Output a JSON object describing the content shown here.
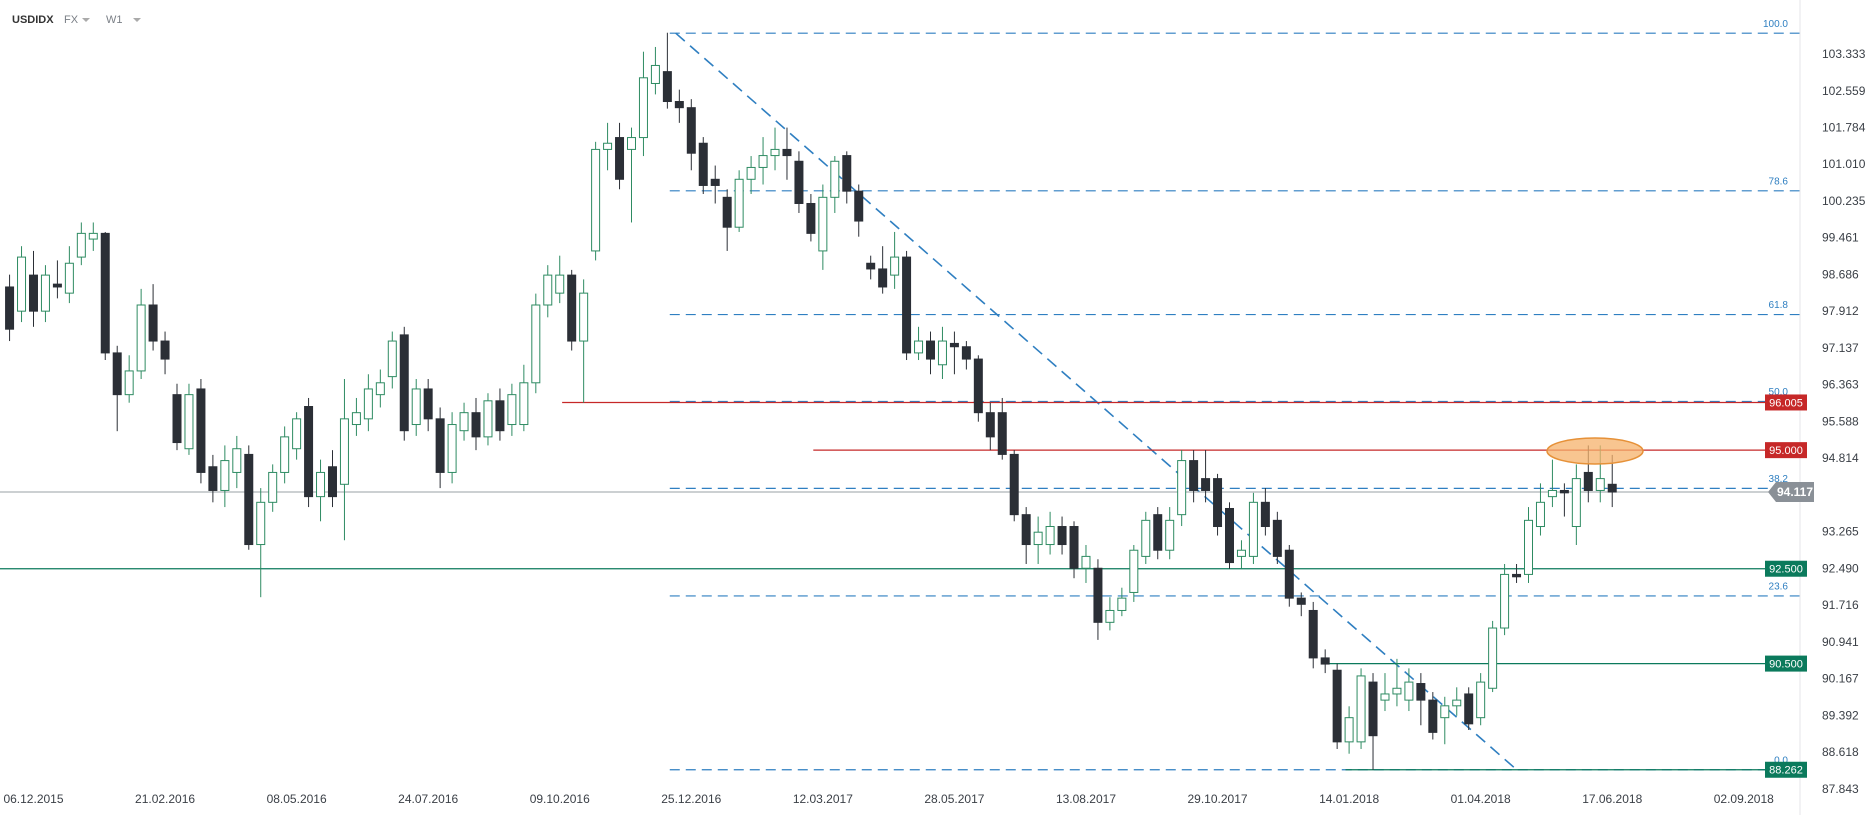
{
  "header": {
    "symbol": "USDIDX",
    "market": "FX",
    "interval": "W1"
  },
  "chart_data": {
    "type": "candlestick",
    "xlim": [
      -0.8,
      149.7
    ],
    "xticks": [
      {
        "value": 2,
        "label": "06.12.2015"
      },
      {
        "value": 13,
        "label": "21.02.2016"
      },
      {
        "value": 24,
        "label": "08.05.2016"
      },
      {
        "value": 35,
        "label": "24.07.2016"
      },
      {
        "value": 46,
        "label": "09.10.2016"
      },
      {
        "value": 57,
        "label": "25.12.2016"
      },
      {
        "value": 68,
        "label": "12.03.2017"
      },
      {
        "value": 79,
        "label": "28.05.2017"
      },
      {
        "value": 90,
        "label": "13.08.2017"
      },
      {
        "value": 101,
        "label": "29.10.2017"
      },
      {
        "value": 112,
        "label": "14.01.2018"
      },
      {
        "value": 123,
        "label": "01.04.2018"
      },
      {
        "value": 134,
        "label": "17.06.2018"
      },
      {
        "value": 145,
        "label": "02.09.2018"
      }
    ],
    "ylim": [
      87.54,
      104.49
    ],
    "yticks": [
      103.333,
      102.559,
      101.784,
      {
        "value": 101.01,
        "label": "101.010"
      },
      100.235,
      99.461,
      98.686,
      97.912,
      97.137,
      96.363,
      95.588,
      94.814,
      93.265,
      {
        "value": 92.49,
        "label": "92.490"
      },
      91.716,
      90.941,
      90.167,
      89.392,
      88.618,
      87.843
    ],
    "up_color": "#2e8b62",
    "down_color": "#2b2f36",
    "open": [
      98.44,
      97.93,
      98.69,
      97.93,
      98.5,
      98.31,
      99.07,
      99.45,
      99.57,
      97.05,
      96.17,
      96.67,
      98.06,
      97.3,
      96.17,
      95.03,
      96.29,
      94.65,
      94.15,
      94.53,
      94.91,
      93.01,
      93.9,
      94.53,
      95.03,
      95.92,
      94.02,
      94.65,
      94.28,
      95.54,
      95.66,
      96.17,
      96.55,
      97.43,
      95.54,
      96.29,
      95.66,
      94.53,
      95.41,
      95.79,
      95.28,
      96.04,
      95.54,
      95.54,
      96.42,
      98.06,
      98.31,
      98.69,
      97.3,
      99.2,
      101.34,
      101.59,
      101.34,
      101.59,
      102.73,
      102.98,
      102.35,
      102.22,
      101.47,
      100.71,
      100.33,
      99.7,
      100.71,
      100.96,
      101.21,
      101.34,
      101.09,
      100.2,
      99.2,
      100.33,
      101.21,
      100.46,
      98.94,
      98.82,
      98.69,
      99.07,
      97.05,
      97.3,
      96.8,
      97.25,
      97.18,
      96.92,
      95.79,
      95.79,
      94.91,
      93.64,
      93.01,
      93.01,
      93.39,
      93.39,
      92.51,
      92.51,
      91.37,
      91.62,
      92.0,
      92.76,
      93.64,
      92.89,
      93.64,
      94.78,
      94.4,
      94.4,
      93.77,
      92.76,
      92.76,
      93.9,
      93.52,
      92.89,
      91.88,
      91.62,
      90.62,
      90.36,
      88.85,
      88.85,
      90.11,
      89.73,
      89.86,
      89.73,
      90.08,
      89.73,
      89.36,
      89.61,
      89.86,
      89.36,
      89.98,
      91.25,
      92.38,
      92.38,
      93.39,
      94.02,
      94.15,
      93.39,
      94.53,
      94.15,
      94.28
    ],
    "high": [
      98.7,
      99.3,
      99.2,
      98.9,
      99.0,
      99.3,
      99.8,
      99.8,
      99.6,
      97.2,
      97.0,
      98.4,
      98.5,
      97.5,
      96.4,
      96.4,
      96.5,
      94.9,
      95.1,
      95.3,
      95.1,
      94.2,
      94.7,
      95.5,
      95.8,
      96.1,
      94.8,
      95.0,
      96.5,
      96.1,
      96.6,
      96.7,
      97.5,
      97.6,
      96.5,
      96.5,
      95.9,
      95.8,
      96.0,
      96.1,
      96.2,
      96.3,
      96.4,
      96.8,
      98.3,
      98.9,
      99.1,
      98.8,
      98.6,
      101.5,
      101.9,
      101.9,
      101.8,
      103.4,
      103.5,
      103.8,
      102.6,
      102.4,
      101.6,
      101.0,
      100.5,
      100.9,
      101.2,
      101.6,
      101.8,
      101.8,
      101.3,
      100.4,
      100.6,
      101.2,
      101.3,
      100.6,
      99.1,
      99.3,
      99.6,
      99.2,
      97.6,
      97.5,
      97.6,
      97.5,
      97.3,
      97.0,
      96.0,
      96.1,
      95.0,
      93.8,
      93.6,
      93.7,
      93.6,
      93.5,
      93.0,
      92.7,
      91.9,
      92.1,
      93.0,
      93.7,
      93.8,
      93.8,
      95.0,
      95.0,
      95.0,
      94.5,
      93.9,
      93.1,
      94.1,
      94.2,
      93.7,
      93.0,
      92.0,
      91.8,
      90.8,
      90.5,
      89.6,
      90.4,
      90.3,
      90.3,
      90.6,
      90.4,
      90.3,
      89.9,
      89.8,
      90.0,
      90.0,
      90.3,
      91.4,
      92.6,
      92.6,
      93.8,
      94.3,
      94.8,
      94.3,
      94.7,
      95.1,
      95.1,
      94.9
    ],
    "low": [
      97.3,
      97.7,
      97.6,
      97.7,
      98.2,
      98.1,
      98.9,
      99.2,
      96.9,
      95.4,
      96.0,
      96.5,
      97.1,
      96.6,
      95.0,
      94.9,
      94.3,
      93.9,
      93.8,
      94.2,
      92.9,
      91.9,
      93.7,
      94.3,
      94.8,
      93.8,
      93.5,
      93.8,
      93.1,
      95.3,
      95.4,
      95.9,
      96.3,
      95.2,
      95.3,
      95.4,
      94.2,
      94.3,
      95.2,
      95.0,
      95.1,
      95.2,
      95.3,
      95.4,
      96.2,
      97.8,
      98.1,
      97.1,
      96.0,
      99.0,
      100.9,
      100.5,
      99.8,
      101.2,
      102.5,
      102.2,
      101.9,
      100.9,
      100.4,
      100.2,
      99.2,
      99.6,
      100.4,
      100.6,
      100.9,
      100.7,
      100.0,
      99.4,
      98.8,
      100.0,
      100.2,
      99.5,
      98.6,
      98.3,
      98.4,
      96.9,
      96.9,
      96.6,
      96.5,
      96.6,
      96.7,
      95.6,
      95.0,
      94.8,
      93.5,
      92.6,
      92.6,
      92.8,
      92.8,
      92.3,
      92.2,
      91.0,
      91.2,
      91.5,
      91.8,
      92.6,
      92.7,
      92.7,
      93.4,
      93.9,
      93.9,
      93.2,
      92.5,
      92.5,
      92.6,
      93.2,
      92.6,
      91.7,
      91.5,
      90.4,
      90.3,
      88.7,
      88.6,
      88.7,
      88.26,
      89.5,
      89.6,
      89.5,
      89.2,
      88.9,
      88.8,
      89.4,
      89.1,
      89.2,
      89.9,
      91.1,
      92.2,
      92.2,
      93.2,
      93.8,
      93.6,
      93.0,
      93.9,
      93.9,
      93.8
    ],
    "close": [
      97.55,
      99.07,
      97.93,
      98.69,
      98.44,
      98.94,
      99.57,
      99.57,
      97.05,
      96.17,
      96.67,
      98.06,
      97.3,
      96.92,
      95.16,
      96.17,
      94.53,
      94.15,
      94.78,
      95.03,
      93.01,
      93.9,
      94.53,
      95.28,
      95.66,
      94.02,
      94.53,
      94.02,
      95.66,
      95.79,
      96.29,
      96.42,
      97.3,
      95.41,
      96.29,
      95.66,
      94.53,
      95.54,
      95.79,
      95.28,
      96.04,
      95.41,
      96.17,
      96.42,
      98.06,
      98.69,
      98.69,
      97.3,
      98.31,
      101.34,
      101.47,
      100.71,
      101.59,
      102.85,
      103.11,
      102.35,
      102.22,
      101.26,
      100.58,
      100.58,
      99.7,
      100.71,
      100.96,
      101.21,
      101.34,
      101.21,
      100.2,
      99.57,
      100.33,
      101.09,
      100.46,
      99.83,
      98.82,
      98.44,
      99.07,
      97.05,
      97.3,
      96.92,
      97.3,
      97.18,
      96.92,
      95.79,
      95.28,
      94.91,
      93.64,
      93.01,
      93.27,
      93.39,
      93.01,
      92.51,
      92.76,
      91.37,
      91.62,
      91.88,
      92.89,
      93.52,
      92.89,
      93.52,
      94.78,
      94.15,
      94.15,
      93.39,
      92.63,
      92.89,
      93.9,
      93.39,
      92.76,
      91.88,
      91.75,
      90.62,
      90.49,
      88.85,
      89.36,
      90.24,
      88.98,
      89.86,
      89.98,
      90.11,
      89.73,
      89.05,
      89.61,
      89.73,
      89.23,
      90.11,
      91.25,
      92.38,
      92.33,
      93.52,
      93.9,
      94.15,
      94.1,
      94.4,
      94.15,
      94.4,
      94.117
    ],
    "levels": {
      "values": [
        96.005,
        95,
        92.5,
        90.5,
        88.262
      ],
      "value_labels": [
        "96.005",
        "95.000",
        "92.500",
        "90.500",
        "88.262"
      ],
      "colors": [
        "#c62828",
        "#c62828",
        "#0b7a5c",
        "#0b7a5c",
        "#0b7a5c"
      ],
      "start": [
        46.2,
        67.2,
        null,
        109.7,
        111.7
      ]
    },
    "last_price": 94.117,
    "fibonacci": {
      "high": 103.79,
      "low": 88.262,
      "start": 55.2,
      "color": "#2f7fc1",
      "levels": [
        {
          "value": 100,
          "label": "100.0"
        },
        78.6,
        61.8,
        {
          "value": 50,
          "label": "50.0"
        },
        38.2,
        23.6,
        {
          "value": 0,
          "label": "0.0"
        }
      ]
    },
    "trendline": {
      "x": [
        55.7,
        126.2
      ],
      "y": [
        103.79,
        88.22
      ],
      "color": "#2f7fc1"
    }
  }
}
